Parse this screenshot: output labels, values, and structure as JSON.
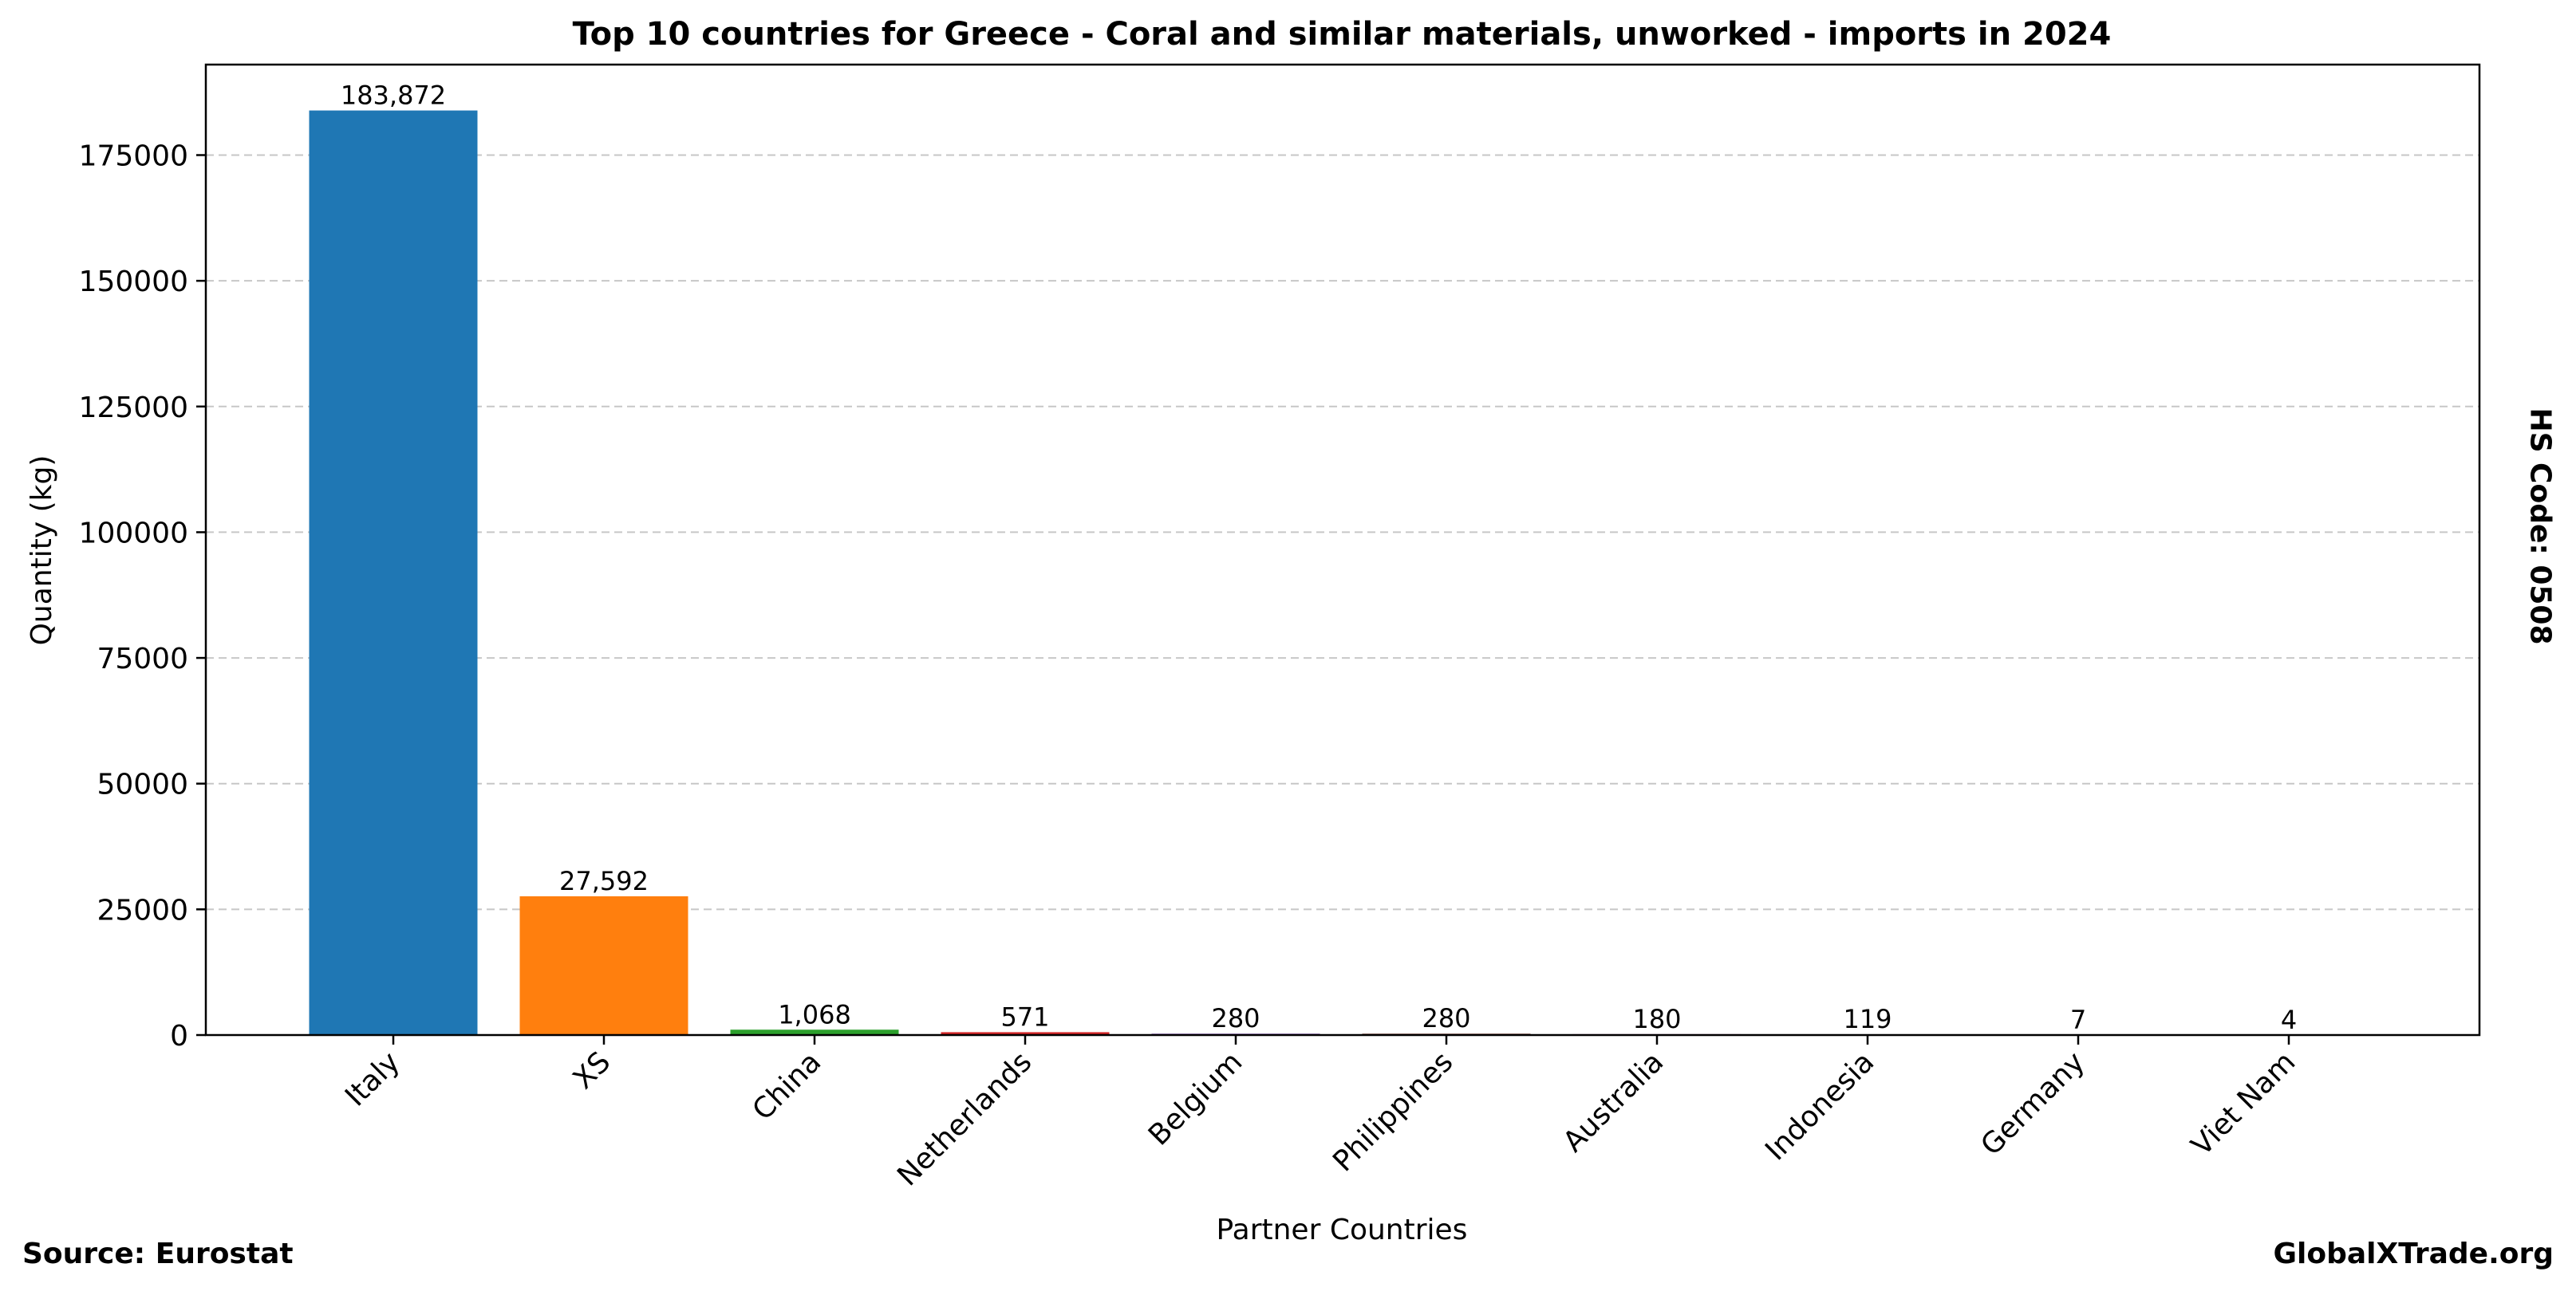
{
  "chart_data": {
    "type": "bar",
    "title": "Top 10 countries for Greece - Coral and similar materials, unworked - imports in 2024",
    "xlabel": "Partner Countries",
    "ylabel": "Quantity (kg)",
    "ylim": [
      0,
      193000
    ],
    "yticks": [
      0,
      25000,
      50000,
      75000,
      100000,
      125000,
      150000,
      175000
    ],
    "grid": "y-dashed",
    "categories": [
      "Italy",
      "XS",
      "China",
      "Netherlands",
      "Belgium",
      "Philippines",
      "Australia",
      "Indonesia",
      "Germany",
      "Viet Nam"
    ],
    "values": [
      183872,
      27592,
      1068,
      571,
      280,
      280,
      180,
      119,
      7,
      4
    ],
    "value_labels": [
      "183,872",
      "27,592",
      "1,068",
      "571",
      "280",
      "280",
      "180",
      "119",
      "7",
      "4"
    ],
    "colors": [
      "#1f77b4",
      "#ff7f0e",
      "#2ca02c",
      "#d62728",
      "#9467bd",
      "#8c564b",
      "#e377c2",
      "#7f7f7f",
      "#bcbd22",
      "#17becf"
    ]
  },
  "footer": {
    "source": "Source: Eurostat",
    "brand": "GlobalXTrade.org",
    "hs_code": "HS Code: 0508"
  }
}
